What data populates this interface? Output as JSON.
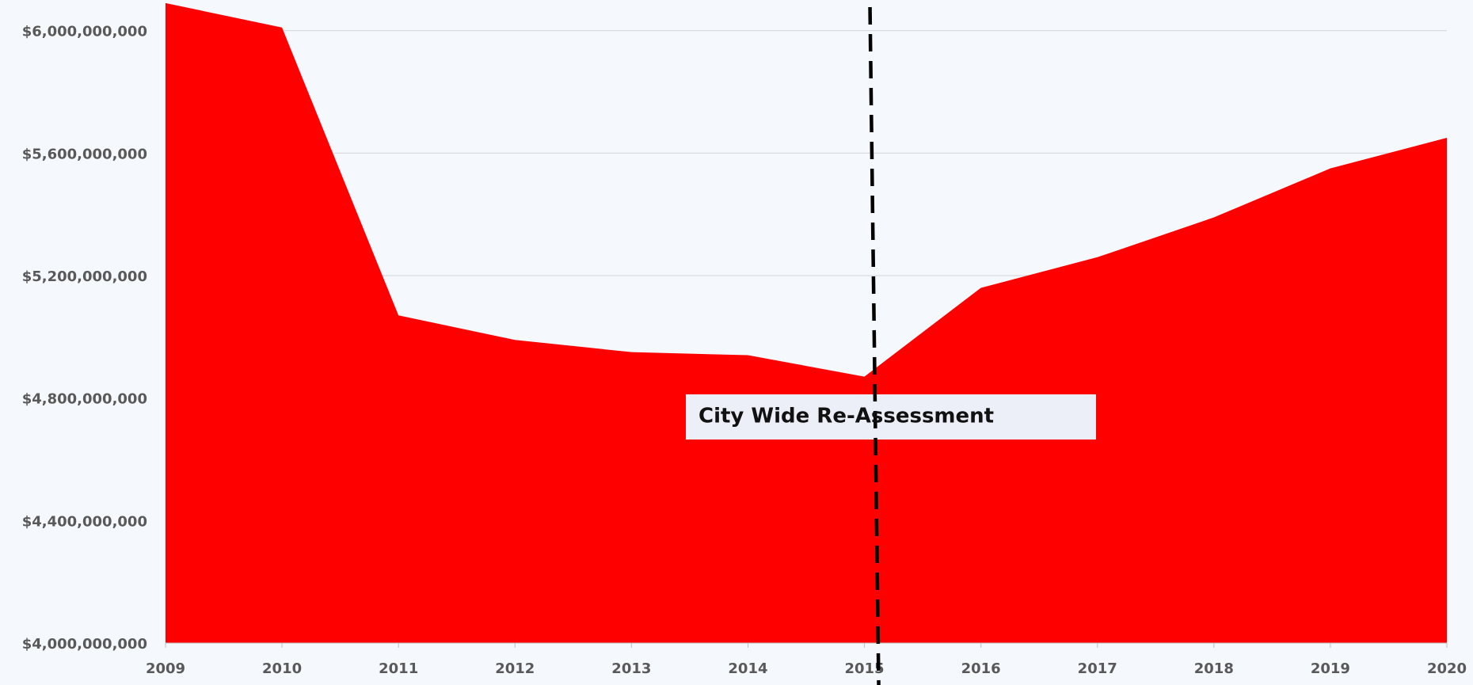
{
  "chart_data": {
    "type": "area",
    "categories": [
      "2009",
      "2010",
      "2011",
      "2012",
      "2013",
      "2014",
      "2015",
      "2016",
      "2017",
      "2018",
      "2019",
      "2020"
    ],
    "values": [
      6090000000,
      6010000000,
      5070000000,
      4990000000,
      4950000000,
      4940000000,
      4870000000,
      5160000000,
      5260000000,
      5390000000,
      5550000000,
      5650000000
    ],
    "color": "#ff0000",
    "ylim": [
      4000000000,
      6100000000
    ],
    "yticks": [
      {
        "value": 4000000000,
        "label": "$4,000,000,000"
      },
      {
        "value": 4400000000,
        "label": "$4,400,000,000"
      },
      {
        "value": 4800000000,
        "label": "$4,800,000,000"
      },
      {
        "value": 5200000000,
        "label": "$5,200,000,000"
      },
      {
        "value": 5600000000,
        "label": "$5,600,000,000"
      },
      {
        "value": 6000000000,
        "label": "$6,000,000,000"
      }
    ],
    "grid": true,
    "annotation": {
      "text": "City Wide Re-Assessment",
      "x": "2015"
    }
  }
}
